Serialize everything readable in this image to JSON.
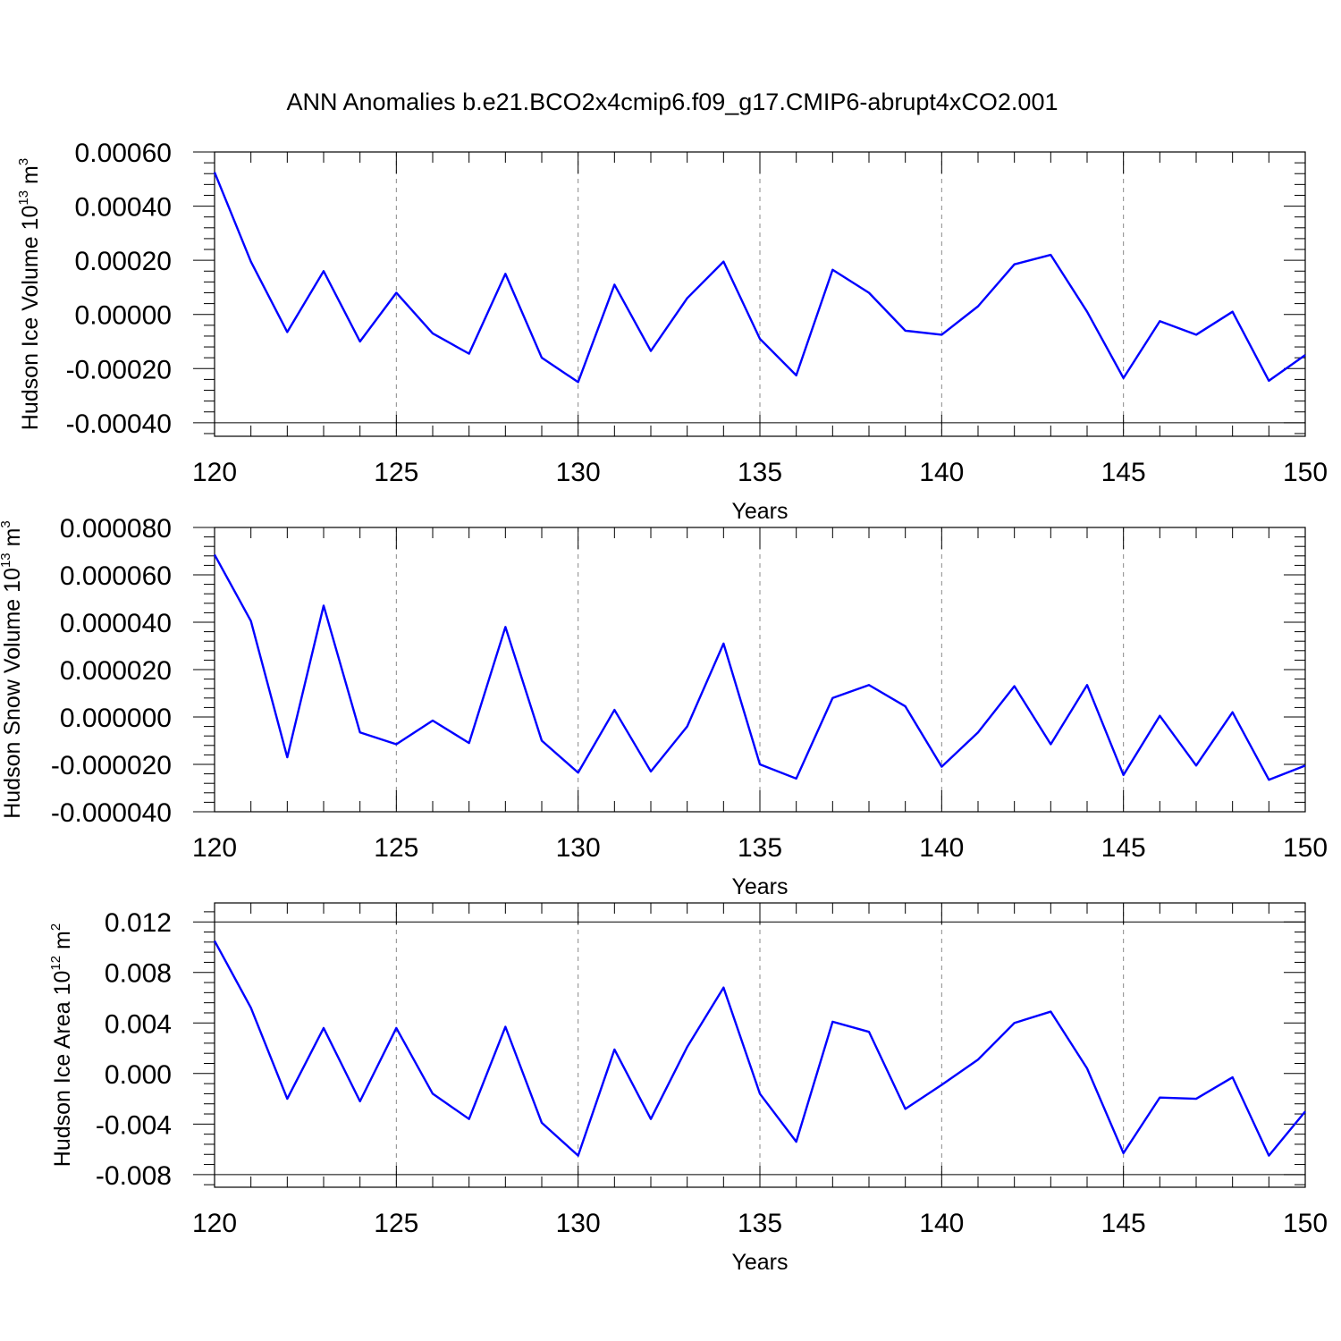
{
  "page": {
    "title": "ANN Anomalies b.e21.BCO2x4cmip6.f09_g17.CMIP6-abrupt4xCO2.001"
  },
  "colors": {
    "line": "#0000ff",
    "grid": "#888888",
    "axis": "#000000"
  },
  "chart_data": [
    {
      "type": "line",
      "ylabel": "Hudson Ice Volume 10",
      "ylabel_exp": "13",
      "ylabel_unit": " m",
      "ylabel_unit_exp": "3",
      "xlabel": "Years",
      "xlim": [
        120,
        150
      ],
      "ylim": [
        -0.00045,
        0.0006
      ],
      "xticks": [
        120,
        125,
        130,
        135,
        140,
        145,
        150
      ],
      "xtick_labels": [
        "120",
        "125",
        "130",
        "135",
        "140",
        "145",
        "150"
      ],
      "yticks": [
        -0.0004,
        -0.0002,
        0.0,
        0.0002,
        0.0004,
        0.0006
      ],
      "ytick_labels": [
        "-0.00040",
        "-0.00020",
        "0.00000",
        "0.00020",
        "0.00040",
        "0.00060"
      ],
      "grid": "vertical dashed at major x ticks",
      "x": [
        120,
        121,
        122,
        123,
        124,
        125,
        126,
        127,
        128,
        129,
        130,
        131,
        132,
        133,
        134,
        135,
        136,
        137,
        138,
        139,
        140,
        141,
        142,
        143,
        144,
        145,
        146,
        147,
        148,
        149,
        150
      ],
      "series": [
        {
          "values": [
            0.000525,
            0.000195,
            -6.5e-05,
            0.00016,
            -0.0001,
            8e-05,
            -7e-05,
            -0.000145,
            0.00015,
            -0.00016,
            -0.00025,
            0.00011,
            -0.000135,
            6e-05,
            0.000195,
            -9e-05,
            -0.000225,
            0.000165,
            8e-05,
            -6e-05,
            -7.5e-05,
            3e-05,
            0.000185,
            0.00022,
            1e-05,
            -0.000235,
            -2.5e-05,
            -7.5e-05,
            1e-05,
            -0.000245,
            -0.00015
          ]
        }
      ]
    },
    {
      "type": "line",
      "ylabel": "Hudson Snow Volume 10",
      "ylabel_exp": "13",
      "ylabel_unit": " m",
      "ylabel_unit_exp": "3",
      "xlabel": "Years",
      "xlim": [
        120,
        150
      ],
      "ylim": [
        -4e-05,
        8e-05
      ],
      "xticks": [
        120,
        125,
        130,
        135,
        140,
        145,
        150
      ],
      "xtick_labels": [
        "120",
        "125",
        "130",
        "135",
        "140",
        "145",
        "150"
      ],
      "yticks": [
        -4e-05,
        -2e-05,
        0.0,
        2e-05,
        4e-05,
        6e-05,
        8e-05
      ],
      "ytick_labels": [
        "-0.000040",
        "-0.000020",
        "0.000000",
        "0.000020",
        "0.000040",
        "0.000060",
        "0.000080"
      ],
      "grid": "vertical dashed at major x ticks",
      "x": [
        120,
        121,
        122,
        123,
        124,
        125,
        126,
        127,
        128,
        129,
        130,
        131,
        132,
        133,
        134,
        135,
        136,
        137,
        138,
        139,
        140,
        141,
        142,
        143,
        144,
        145,
        146,
        147,
        148,
        149,
        150
      ],
      "series": [
        {
          "values": [
            6.85e-05,
            4.05e-05,
            -1.7e-05,
            4.7e-05,
            -6.5e-06,
            -1.15e-05,
            -1.5e-06,
            -1.1e-05,
            3.8e-05,
            -1e-05,
            -2.35e-05,
            3e-06,
            -2.3e-05,
            -4e-06,
            3.1e-05,
            -2e-05,
            -2.6e-05,
            8e-06,
            1.35e-05,
            4.5e-06,
            -2.1e-05,
            -6.5e-06,
            1.3e-05,
            -1.15e-05,
            1.35e-05,
            -2.45e-05,
            5e-07,
            -2.05e-05,
            2e-06,
            -2.65e-05,
            -2.05e-05
          ]
        }
      ]
    },
    {
      "type": "line",
      "ylabel": "Hudson Ice Area 10",
      "ylabel_exp": "12",
      "ylabel_unit": " m",
      "ylabel_unit_exp": "2",
      "xlabel": "Years",
      "xlim": [
        120,
        150
      ],
      "ylim": [
        -0.009,
        0.0135
      ],
      "xticks": [
        120,
        125,
        130,
        135,
        140,
        145,
        150
      ],
      "xtick_labels": [
        "120",
        "125",
        "130",
        "135",
        "140",
        "145",
        "150"
      ],
      "yticks": [
        -0.008,
        -0.004,
        0.0,
        0.004,
        0.008,
        0.012
      ],
      "ytick_labels": [
        "-0.008",
        "-0.004",
        "0.000",
        "0.004",
        "0.008",
        "0.012"
      ],
      "grid": "vertical dashed at major x ticks",
      "x": [
        120,
        121,
        122,
        123,
        124,
        125,
        126,
        127,
        128,
        129,
        130,
        131,
        132,
        133,
        134,
        135,
        136,
        137,
        138,
        139,
        140,
        141,
        142,
        143,
        144,
        145,
        146,
        147,
        148,
        149,
        150
      ],
      "series": [
        {
          "values": [
            0.0105,
            0.0052,
            -0.002,
            0.0036,
            -0.0022,
            0.0036,
            -0.0016,
            -0.0036,
            0.0037,
            -0.0039,
            -0.0065,
            0.0019,
            -0.0036,
            0.0021,
            0.0068,
            -0.0016,
            -0.0054,
            0.0041,
            0.0033,
            -0.0028,
            -0.0009,
            0.0011,
            0.004,
            0.0049,
            0.0004,
            -0.0063,
            -0.0019,
            -0.002,
            -0.0003,
            -0.0065,
            -0.003
          ]
        }
      ]
    }
  ]
}
